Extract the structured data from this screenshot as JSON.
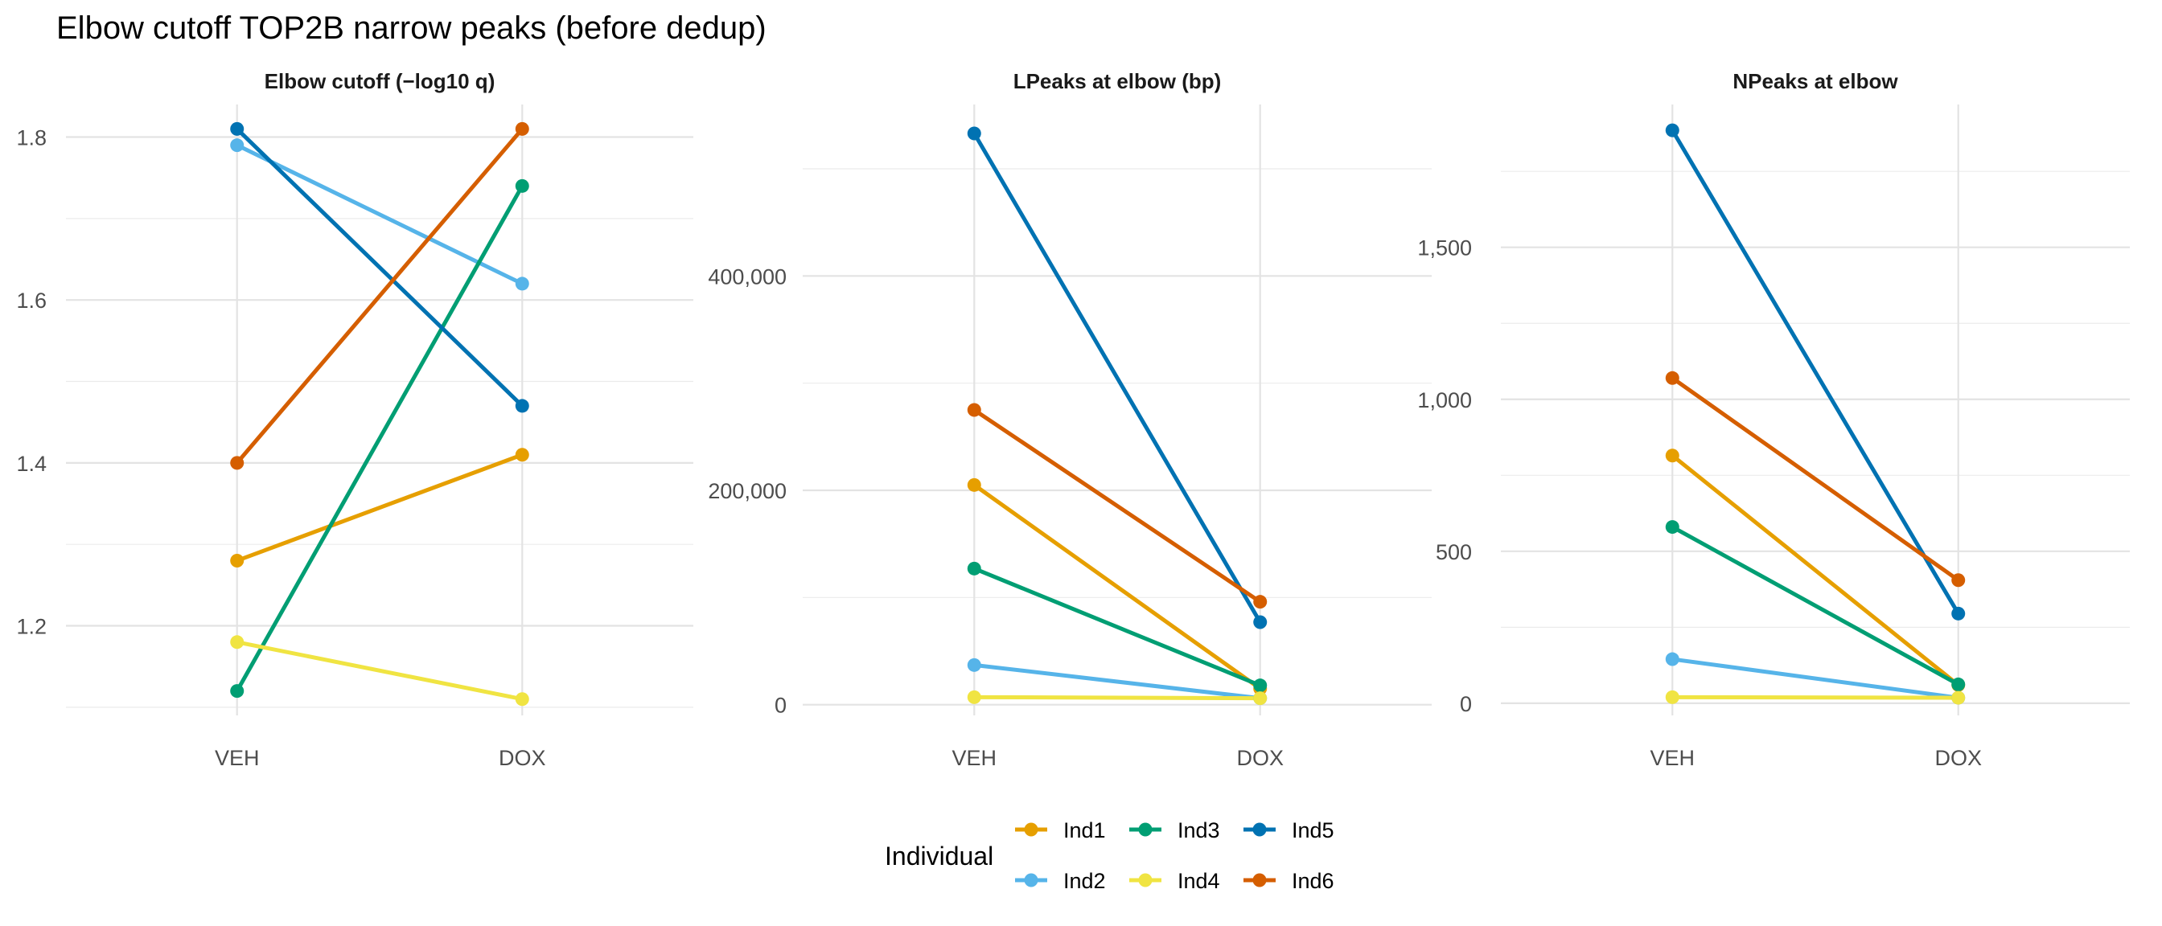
{
  "title": "Elbow cutoff TOP2B narrow peaks (before dedup)",
  "legend": {
    "title": "Individual",
    "position": "bottom",
    "entries": [
      {
        "name": "Ind1",
        "color": "#E69F00"
      },
      {
        "name": "Ind2",
        "color": "#56B4E9"
      },
      {
        "name": "Ind3",
        "color": "#009E73"
      },
      {
        "name": "Ind4",
        "color": "#F0E442"
      },
      {
        "name": "Ind5",
        "color": "#0072B2"
      },
      {
        "name": "Ind6",
        "color": "#D55E00"
      }
    ]
  },
  "chart_data": [
    {
      "type": "line",
      "title": "Elbow cutoff (−log10 q)",
      "categories": [
        "VEH",
        "DOX"
      ],
      "yticks": [
        1.2,
        1.4,
        1.6,
        1.8
      ],
      "ytick_labels": [
        "1.2",
        "1.4",
        "1.6",
        "1.8"
      ],
      "ylim": [
        1.09,
        1.84
      ],
      "grid": true,
      "series": [
        {
          "name": "Ind1",
          "values": [
            1.28,
            1.41
          ]
        },
        {
          "name": "Ind2",
          "values": [
            1.79,
            1.62
          ]
        },
        {
          "name": "Ind3",
          "values": [
            1.12,
            1.74
          ]
        },
        {
          "name": "Ind4",
          "values": [
            1.18,
            1.11
          ]
        },
        {
          "name": "Ind5",
          "values": [
            1.81,
            1.47
          ]
        },
        {
          "name": "Ind6",
          "values": [
            1.4,
            1.81
          ]
        }
      ]
    },
    {
      "type": "line",
      "title": "LPeaks at elbow (bp)",
      "categories": [
        "VEH",
        "DOX"
      ],
      "yticks": [
        0,
        200000,
        400000
      ],
      "ytick_labels": [
        "0",
        "200,000",
        "400,000"
      ],
      "ylim": [
        -10000,
        560000
      ],
      "grid": true,
      "series": [
        {
          "name": "Ind1",
          "values": [
            205000,
            15000
          ]
        },
        {
          "name": "Ind2",
          "values": [
            37000,
            6000
          ]
        },
        {
          "name": "Ind3",
          "values": [
            127000,
            18000
          ]
        },
        {
          "name": "Ind4",
          "values": [
            7000,
            6000
          ]
        },
        {
          "name": "Ind5",
          "values": [
            533000,
            77000
          ]
        },
        {
          "name": "Ind6",
          "values": [
            275000,
            96000
          ]
        }
      ]
    },
    {
      "type": "line",
      "title": "NPeaks at elbow",
      "categories": [
        "VEH",
        "DOX"
      ],
      "yticks": [
        0,
        500,
        1000,
        1500
      ],
      "ytick_labels": [
        "0",
        "500",
        "1,000",
        "1,500"
      ],
      "ylim": [
        -40,
        1970
      ],
      "grid": true,
      "series": [
        {
          "name": "Ind1",
          "values": [
            815,
            60
          ]
        },
        {
          "name": "Ind2",
          "values": [
            145,
            18
          ]
        },
        {
          "name": "Ind3",
          "values": [
            580,
            62
          ]
        },
        {
          "name": "Ind4",
          "values": [
            20,
            18
          ]
        },
        {
          "name": "Ind5",
          "values": [
            1885,
            295
          ]
        },
        {
          "name": "Ind6",
          "values": [
            1070,
            405
          ]
        }
      ]
    }
  ]
}
